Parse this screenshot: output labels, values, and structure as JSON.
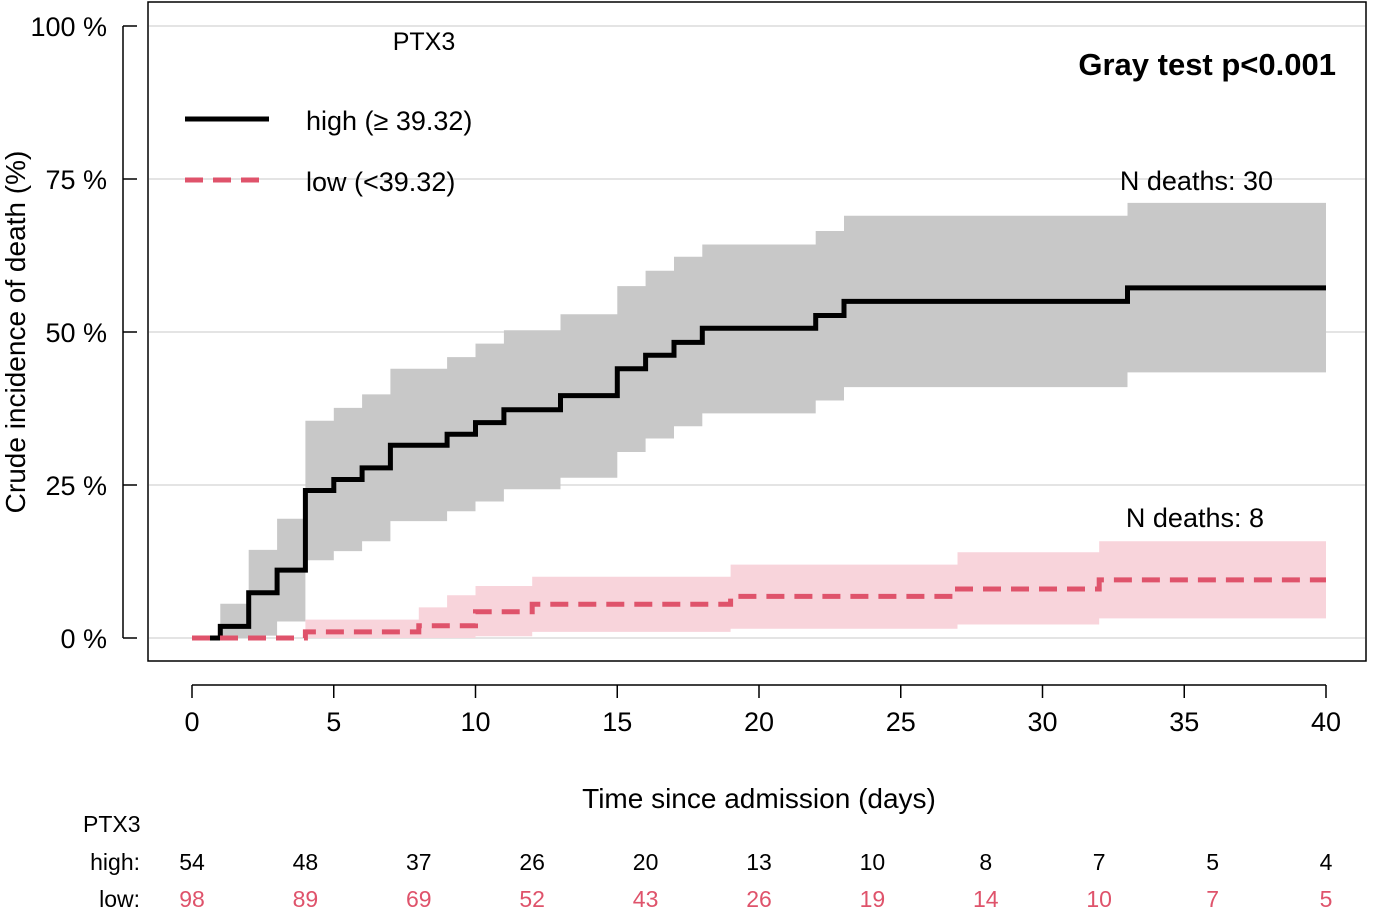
{
  "chart_data": {
    "type": "line",
    "subtype": "cumulative-incidence-step",
    "title": "PTX3",
    "annotation": "Gray test p<0.001",
    "xlabel": "Time since admission (days)",
    "ylabel": "Crude incidence of death (%)",
    "xlim": [
      0,
      40
    ],
    "ylim": [
      0,
      100
    ],
    "x_ticks": [
      0,
      5,
      10,
      15,
      20,
      25,
      30,
      35,
      40
    ],
    "y_ticks": [
      0,
      25,
      50,
      75,
      100
    ],
    "y_tick_labels": [
      "0 %",
      "25 %",
      "50 %",
      "75 %",
      "100 %"
    ],
    "grid": "horizontal",
    "legend_position": "top-left",
    "series": [
      {
        "name": "high (≥ 39.32)",
        "color": "#000000",
        "band_color": "#c8c8c8",
        "line_style": "solid",
        "deaths_label": "N deaths: 30",
        "steps": [
          {
            "t": 0,
            "y": 0,
            "lo": 0,
            "hi": 0
          },
          {
            "t": 1,
            "y": 1.9,
            "lo": 0,
            "hi": 5.6
          },
          {
            "t": 2,
            "y": 7.4,
            "lo": 0.4,
            "hi": 14.4
          },
          {
            "t": 3,
            "y": 11.1,
            "lo": 2.7,
            "hi": 19.5
          },
          {
            "t": 4,
            "y": 24.1,
            "lo": 12.7,
            "hi": 35.5
          },
          {
            "t": 5,
            "y": 25.9,
            "lo": 14.2,
            "hi": 37.6
          },
          {
            "t": 6,
            "y": 27.8,
            "lo": 15.8,
            "hi": 39.8
          },
          {
            "t": 7,
            "y": 31.5,
            "lo": 19.1,
            "hi": 44.0
          },
          {
            "t": 9,
            "y": 33.3,
            "lo": 20.7,
            "hi": 45.9
          },
          {
            "t": 10,
            "y": 35.2,
            "lo": 22.3,
            "hi": 48.1
          },
          {
            "t": 11,
            "y": 37.3,
            "lo": 24.3,
            "hi": 50.3
          },
          {
            "t": 13,
            "y": 39.6,
            "lo": 26.2,
            "hi": 52.9
          },
          {
            "t": 15,
            "y": 44.0,
            "lo": 30.4,
            "hi": 57.5
          },
          {
            "t": 16,
            "y": 46.2,
            "lo": 32.6,
            "hi": 60.0
          },
          {
            "t": 17,
            "y": 48.3,
            "lo": 34.6,
            "hi": 62.3
          },
          {
            "t": 18,
            "y": 50.6,
            "lo": 36.7,
            "hi": 64.3
          },
          {
            "t": 22,
            "y": 52.7,
            "lo": 38.8,
            "hi": 66.5
          },
          {
            "t": 23,
            "y": 55.0,
            "lo": 41.0,
            "hi": 69.0
          },
          {
            "t": 33,
            "y": 57.2,
            "lo": 43.4,
            "hi": 71.1
          }
        ],
        "end_t": 40
      },
      {
        "name": "low (<39.32)",
        "color": "#df536b",
        "band_color": "#f8d4db",
        "line_style": "dashed",
        "deaths_label": "N deaths: 8",
        "steps": [
          {
            "t": 0,
            "y": 0,
            "lo": 0,
            "hi": 0
          },
          {
            "t": 4,
            "y": 1.0,
            "lo": 0,
            "hi": 3.0
          },
          {
            "t": 8,
            "y": 2.0,
            "lo": 0,
            "hi": 5.0
          },
          {
            "t": 9,
            "y": 2.0,
            "lo": 0,
            "hi": 7.0
          },
          {
            "t": 10,
            "y": 4.3,
            "lo": 0.3,
            "hi": 8.5
          },
          {
            "t": 12,
            "y": 5.5,
            "lo": 1.0,
            "hi": 10.0
          },
          {
            "t": 19,
            "y": 6.8,
            "lo": 1.5,
            "hi": 12.0
          },
          {
            "t": 27,
            "y": 8.0,
            "lo": 2.2,
            "hi": 14.0
          },
          {
            "t": 32,
            "y": 9.5,
            "lo": 3.2,
            "hi": 15.8
          }
        ],
        "end_t": 40
      }
    ]
  },
  "risk_table": {
    "title": "PTX3",
    "times": [
      0,
      4,
      8,
      12,
      16,
      20,
      24,
      28,
      32,
      36,
      40
    ],
    "rows": [
      {
        "label": "high:",
        "color": "#000000",
        "values": [
          "54",
          "48",
          "37",
          "26",
          "20",
          "13",
          "10",
          "8",
          "7",
          "5",
          "4"
        ]
      },
      {
        "label": "low:",
        "color": "#df536b",
        "values": [
          "98",
          "89",
          "69",
          "52",
          "43",
          "26",
          "19",
          "14",
          "10",
          "7",
          "5"
        ]
      }
    ]
  }
}
